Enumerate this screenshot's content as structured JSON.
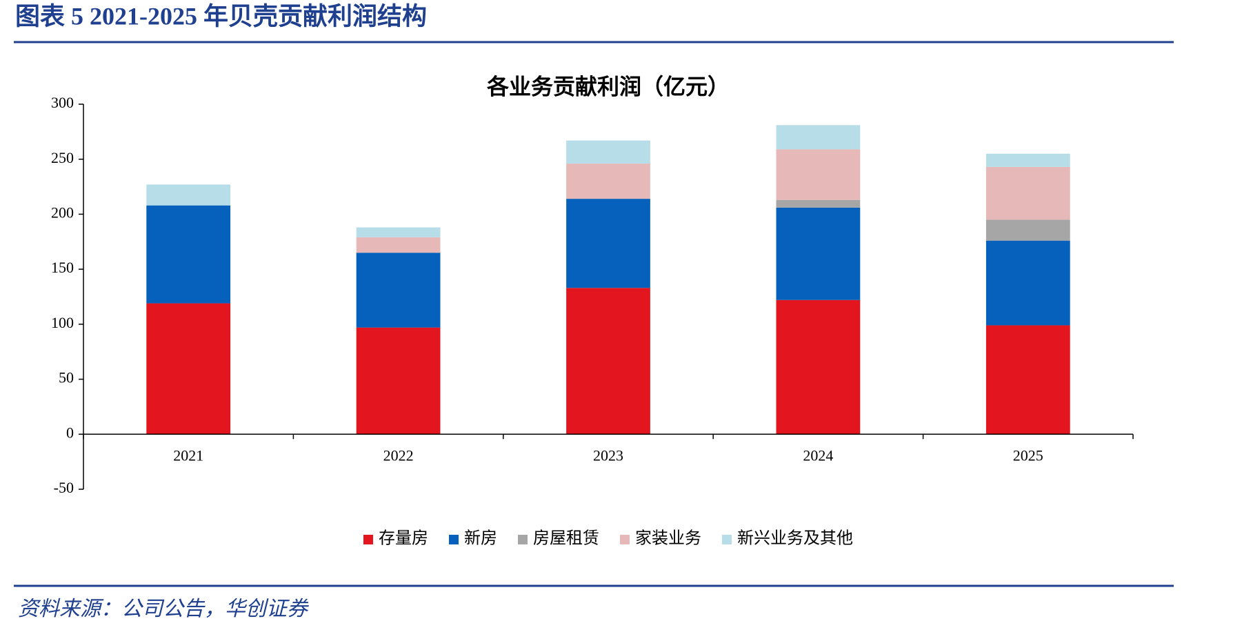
{
  "header": {
    "title": "图表 5   2021-2025 年贝壳贡献利润结构"
  },
  "chart_data": {
    "type": "stacked-bar",
    "title": "各业务贡献利润（亿元）",
    "categories": [
      "2021",
      "2022",
      "2023",
      "2024",
      "2025"
    ],
    "series": [
      {
        "name": "存量房",
        "color": "#e3161f",
        "values": [
          119,
          97,
          133,
          122,
          99
        ]
      },
      {
        "name": "新房",
        "color": "#0561bb",
        "values": [
          89,
          68,
          81,
          84,
          77
        ]
      },
      {
        "name": "房屋租赁",
        "color": "#a6a6a6",
        "values": [
          0,
          0,
          0,
          7,
          19
        ]
      },
      {
        "name": "家装业务",
        "color": "#e6b8b7",
        "values": [
          0,
          14,
          32,
          46,
          48
        ]
      },
      {
        "name": "新兴业务及其他",
        "color": "#b7dde8",
        "values": [
          19,
          9,
          21,
          22,
          12
        ]
      }
    ],
    "ylim": [
      -50,
      300
    ],
    "yticks": [
      -50,
      0,
      50,
      100,
      150,
      200,
      250,
      300
    ],
    "legend": "bottom"
  },
  "footer": {
    "source": "资料来源：公司公告，华创证券"
  }
}
